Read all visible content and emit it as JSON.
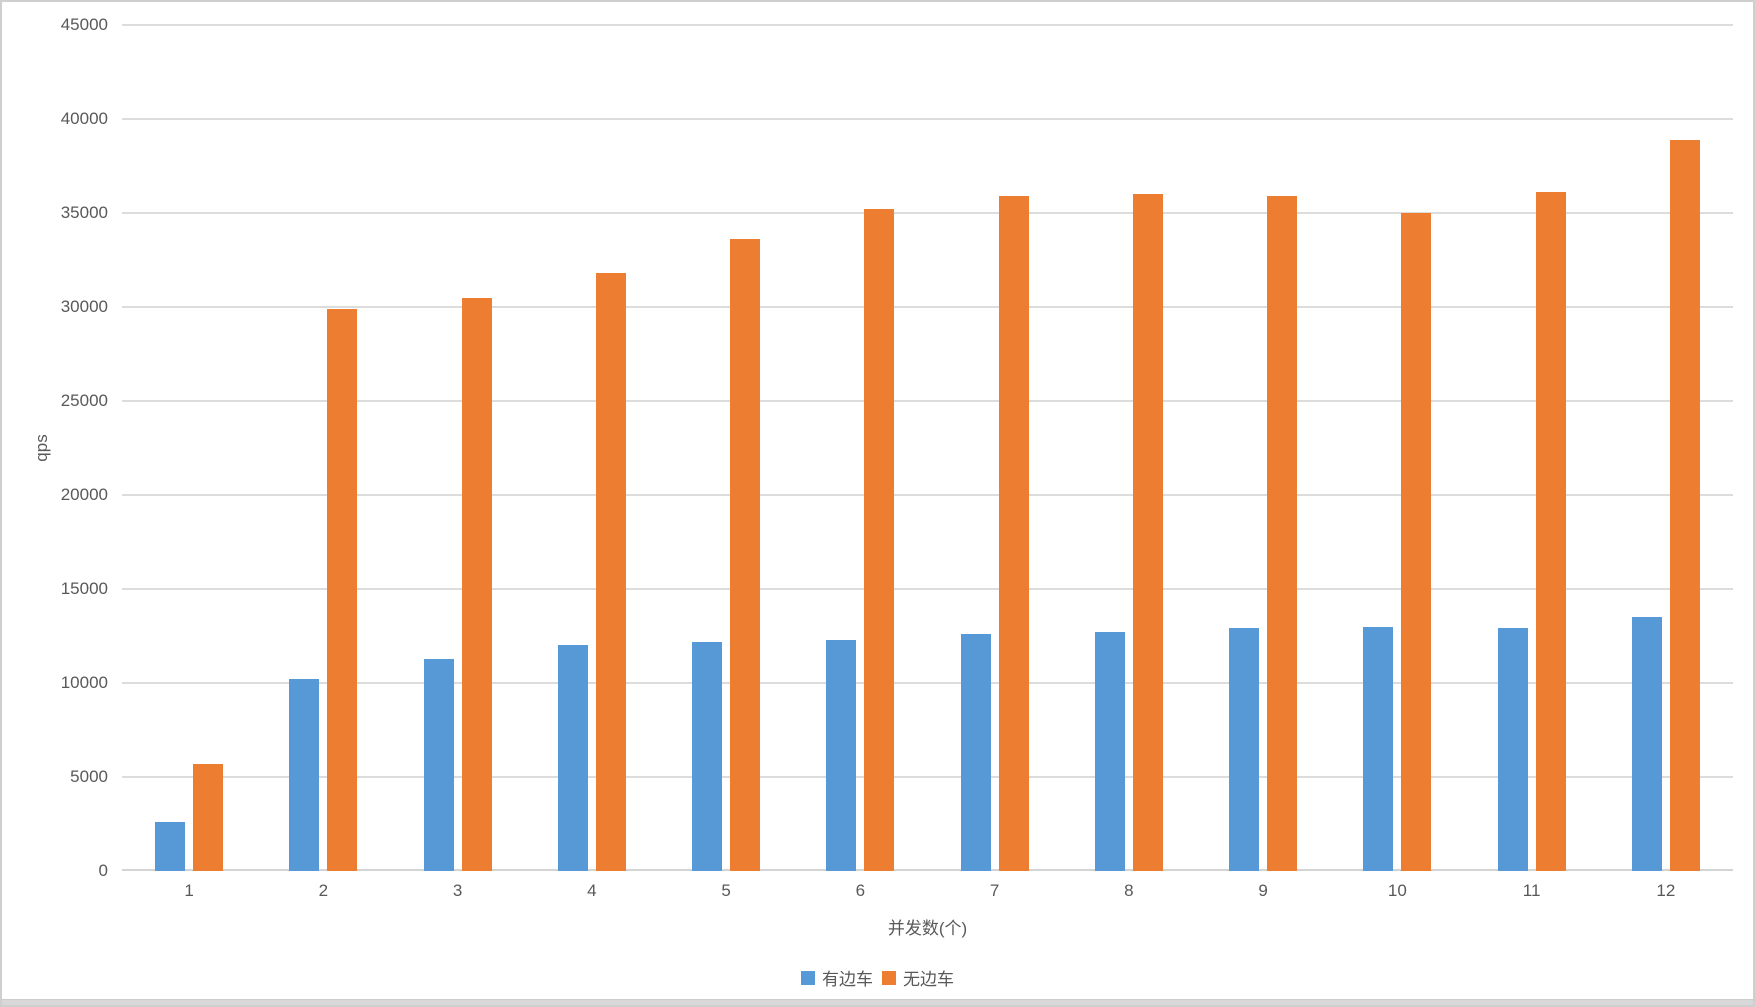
{
  "chart_data": {
    "type": "bar",
    "title": "",
    "xlabel": "并发数(个)",
    "ylabel": "qps",
    "categories": [
      "1",
      "2",
      "3",
      "4",
      "5",
      "6",
      "7",
      "8",
      "9",
      "10",
      "11",
      "12"
    ],
    "series": [
      {
        "name": "有边车",
        "color": "#5699D6",
        "values": [
          2600,
          10200,
          11300,
          12000,
          12200,
          12300,
          12600,
          12700,
          12900,
          13000,
          12900,
          13500
        ]
      },
      {
        "name": "无边车",
        "color": "#ED7D31",
        "values": [
          5700,
          29900,
          30500,
          31800,
          33600,
          35200,
          35900,
          36000,
          35900,
          35000,
          36100,
          38900
        ]
      }
    ],
    "ylim": [
      0,
      45000
    ],
    "ytick_step": 5000,
    "yticks": [
      0,
      5000,
      10000,
      15000,
      20000,
      25000,
      30000,
      35000,
      40000,
      45000
    ],
    "ytick_labels": [
      "0",
      "5000",
      "10000",
      "15000",
      "20000",
      "25000",
      "30000",
      "35000",
      "40000",
      "45000"
    ],
    "grid": true,
    "legend_position": "bottom"
  }
}
